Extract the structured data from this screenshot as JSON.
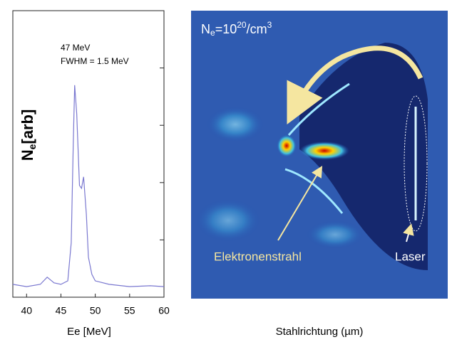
{
  "chart_data": {
    "type": "line",
    "xlabel": "Ee [MeV]",
    "ylabel": {
      "main": "N",
      "sub": "e",
      "rest": "[arb]"
    },
    "annotations": [
      "47 MeV",
      "FWHM = 1.5 MeV"
    ],
    "x": [
      38,
      40,
      42,
      43,
      44,
      45,
      46,
      46.5,
      46.8,
      47,
      47.3,
      47.7,
      48,
      48.3,
      48.7,
      49,
      49.5,
      50,
      52,
      55,
      58,
      60
    ],
    "series": [
      {
        "color": "#7a78d0",
        "values": [
          4.5,
          3.7,
          4.5,
          7,
          5,
          4.5,
          5.7,
          19,
          54,
          74,
          64,
          39,
          38,
          42,
          29,
          14,
          8,
          5.7,
          4.5,
          3.7,
          4,
          3.7
        ]
      }
    ],
    "xlim": [
      38,
      60
    ],
    "xticks": [
      40,
      45,
      50,
      55,
      60
    ],
    "ylim": [
      0,
      100
    ],
    "yticks": [
      0,
      20,
      40,
      60,
      80,
      100
    ]
  },
  "image_panel": {
    "density": {
      "main": "N",
      "sub": "e",
      "eq": "=10",
      "sup": "20",
      "unit": "/cm",
      "sup2": "3"
    },
    "labels": [
      "Elektronenstrahl",
      "Laser"
    ],
    "xlabel": "Stahlrichtung (µm)"
  }
}
